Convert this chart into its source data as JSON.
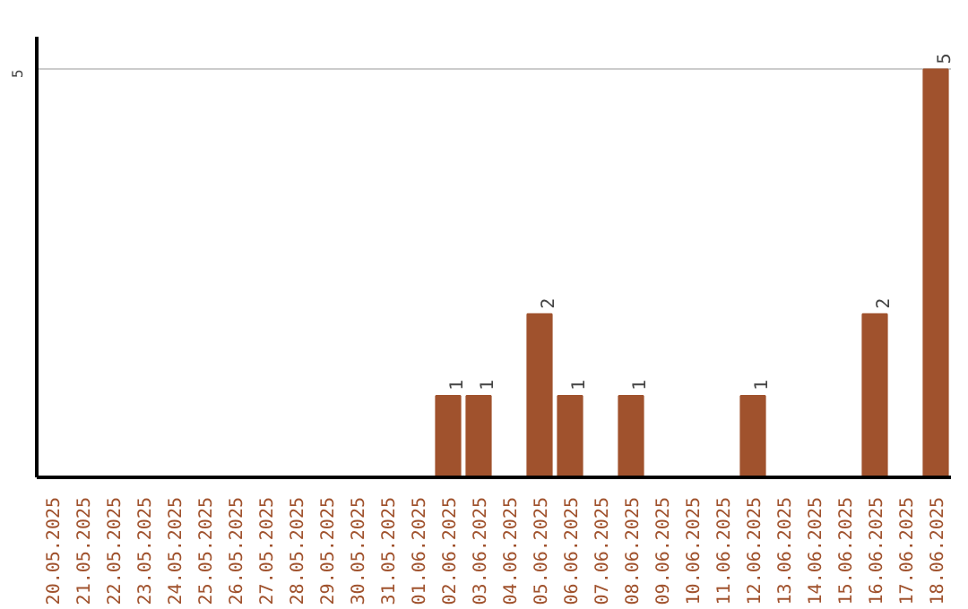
{
  "chart_data": {
    "type": "bar",
    "categories": [
      "20.05.2025",
      "21.05.2025",
      "22.05.2025",
      "23.05.2025",
      "24.05.2025",
      "25.05.2025",
      "26.05.2025",
      "27.05.2025",
      "28.05.2025",
      "29.05.2025",
      "30.05.2025",
      "31.05.2025",
      "01.06.2025",
      "02.06.2025",
      "03.06.2025",
      "04.06.2025",
      "05.06.2025",
      "06.06.2025",
      "07.06.2025",
      "08.06.2025",
      "09.06.2025",
      "10.06.2025",
      "11.06.2025",
      "12.06.2025",
      "13.06.2025",
      "14.06.2025",
      "15.06.2025",
      "16.06.2025",
      "17.06.2025",
      "18.06.2025"
    ],
    "values": [
      null,
      null,
      null,
      null,
      null,
      null,
      null,
      null,
      null,
      null,
      null,
      null,
      null,
      1,
      1,
      null,
      2,
      1,
      null,
      1,
      null,
      null,
      null,
      1,
      null,
      null,
      null,
      2,
      null,
      5
    ],
    "value_labels": [
      null,
      null,
      null,
      null,
      null,
      null,
      null,
      null,
      null,
      null,
      null,
      null,
      null,
      "1",
      "1",
      null,
      "2",
      "1",
      null,
      "1",
      null,
      null,
      null,
      "1",
      null,
      null,
      null,
      "2",
      null,
      "5"
    ],
    "color": "#a0522d",
    "ylim": [
      0,
      5.4
    ],
    "yticks": [
      5
    ],
    "grid": "y"
  }
}
